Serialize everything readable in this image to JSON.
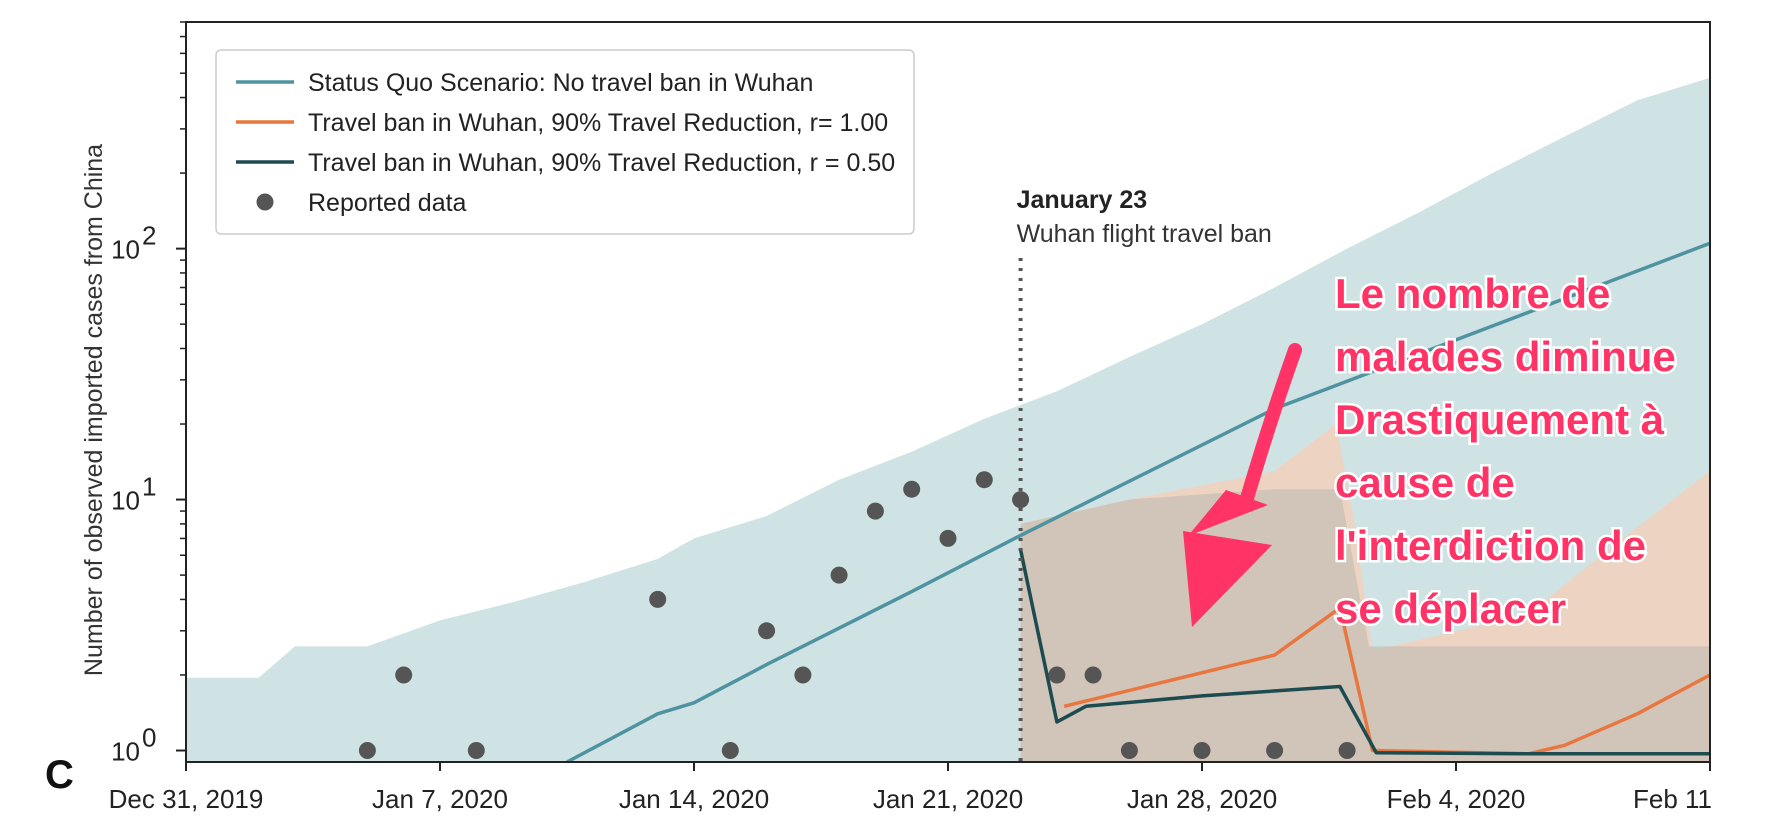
{
  "panel_label": "C",
  "chart_data": {
    "type": "line",
    "title": "",
    "xlabel": "",
    "ylabel": "Number of observed imported cases from China",
    "yscale": "log",
    "ylim": [
      0.9,
      800
    ],
    "xlim": [
      0,
      42
    ],
    "x_unit": "days since Dec 31, 2019",
    "xticks": [
      {
        "day": 0,
        "label": "Dec 31, 2019"
      },
      {
        "day": 7,
        "label": "Jan 7, 2020"
      },
      {
        "day": 14,
        "label": "Jan 14, 2020"
      },
      {
        "day": 21,
        "label": "Jan 21, 2020"
      },
      {
        "day": 28,
        "label": "Jan 28, 2020"
      },
      {
        "day": 35,
        "label": "Feb 4, 2020"
      },
      {
        "day": 42,
        "label": "Feb 11"
      }
    ],
    "yticks": [
      {
        "value": 1,
        "base": "10",
        "exp": "0"
      },
      {
        "value": 10,
        "base": "10",
        "exp": "1"
      },
      {
        "value": 100,
        "base": "10",
        "exp": "2"
      }
    ],
    "legend": [
      {
        "label": "Status Quo Scenario: No travel ban in Wuhan",
        "color": "#4f93a0",
        "kind": "line"
      },
      {
        "label": "Travel ban in Wuhan, 90% Travel Reduction, r= 1.00",
        "color": "#e8773f",
        "kind": "line"
      },
      {
        "label": "Travel ban in Wuhan, 90% Travel Reduction, r = 0.50",
        "color": "#1c4c50",
        "kind": "line"
      },
      {
        "label": "Reported data",
        "color": "#555555",
        "kind": "marker"
      }
    ],
    "series": [
      {
        "name": "Status Quo Scenario: No travel ban in Wuhan",
        "color": "#4f93a0",
        "x": [
          10.5,
          13,
          14,
          16,
          20,
          23,
          30,
          42
        ],
        "y": [
          0.9,
          1.4,
          1.55,
          2.2,
          4.3,
          7.2,
          23,
          105
        ]
      },
      {
        "name": "Travel ban in Wuhan, 90% Travel Reduction, r= 1.00",
        "color": "#e8773f",
        "x": [
          24.2,
          30,
          31.8,
          32.7,
          37,
          38,
          40,
          42
        ],
        "y": [
          1.5,
          2.4,
          3.7,
          1.0,
          0.97,
          1.05,
          1.4,
          2.0
        ]
      },
      {
        "name": "Travel ban in Wuhan, 90% Travel Reduction, r = 0.50",
        "color": "#1c4c50",
        "x": [
          23,
          24,
          24.8,
          28,
          31.8,
          32.8,
          37,
          42
        ],
        "y": [
          6.3,
          1.3,
          1.5,
          1.65,
          1.8,
          0.98,
          0.97,
          0.97
        ]
      }
    ],
    "bands": [
      {
        "name": "Status Quo Scenario range",
        "color": "#cfe3e4",
        "x": [
          0,
          2,
          3,
          5,
          7,
          9,
          11,
          13,
          14,
          16,
          18,
          20,
          22,
          24,
          26,
          28,
          30,
          32,
          34,
          36,
          38,
          40,
          42
        ],
        "upper": [
          1.95,
          1.95,
          2.6,
          2.6,
          3.3,
          3.9,
          4.7,
          5.8,
          7,
          8.6,
          12,
          15.5,
          21,
          27,
          37,
          50,
          70,
          100,
          140,
          200,
          280,
          390,
          480
        ],
        "lower": [
          0.9,
          0.9,
          0.9,
          0.9,
          0.9,
          0.9,
          0.9,
          0.9,
          0.9,
          0.9,
          0.9,
          0.9,
          0.9,
          0.9,
          0.9,
          0.9,
          0.9,
          0.9,
          0.9,
          0.9,
          0.9,
          0.9,
          0.9
        ]
      },
      {
        "name": "Travel ban r=1.00 range",
        "color": "#f7cdb7",
        "x": [
          23,
          26,
          30,
          31.7,
          32.2,
          32.7,
          37,
          39,
          42
        ],
        "upper": [
          8,
          10,
          13,
          20,
          8,
          2.5,
          3.5,
          6,
          13
        ],
        "lower": [
          0.9,
          0.9,
          0.9,
          0.9,
          0.9,
          0.9,
          0.9,
          0.9,
          0.9
        ]
      },
      {
        "name": "Travel ban r=0.50 range",
        "color": "#c5bdb3",
        "x": [
          23,
          26,
          30,
          31.8,
          32.6,
          42
        ],
        "upper": [
          8,
          10,
          11,
          11,
          2.6,
          2.6
        ],
        "lower": [
          0.9,
          0.9,
          0.9,
          0.9,
          0.9,
          0.9
        ]
      }
    ],
    "reported_data": {
      "name": "Reported data",
      "color": "#555555",
      "x": [
        5,
        6,
        8,
        13,
        15,
        16,
        17,
        18,
        19,
        20,
        21,
        22,
        23,
        24,
        25,
        26,
        28,
        30,
        32
      ],
      "y": [
        1,
        2,
        1,
        4,
        1,
        3,
        2,
        5,
        9,
        11,
        7,
        12,
        10,
        2,
        2,
        1,
        1,
        1,
        1
      ]
    },
    "event_marker": {
      "day": 23,
      "title": "January 23",
      "subtitle": "Wuhan flight travel ban"
    },
    "callout": {
      "lines": [
        "Le nombre de",
        "malades diminue",
        "Drastiquement à",
        "cause de",
        "l'interdiction de",
        "se déplacer"
      ],
      "color": "#ff3366"
    }
  }
}
